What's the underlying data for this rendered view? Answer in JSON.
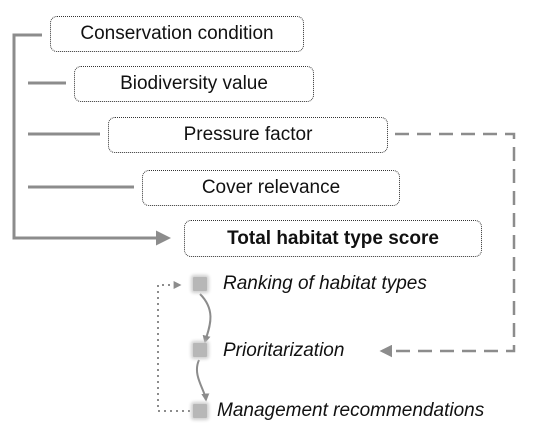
{
  "factors": [
    {
      "label": "Conservation condition"
    },
    {
      "label": "Biodiversity value"
    },
    {
      "label": "Pressure factor"
    },
    {
      "label": "Cover relevance"
    }
  ],
  "total": {
    "label": "Total habitat type score"
  },
  "steps": [
    {
      "label": "Ranking of habitat types"
    },
    {
      "label": "Prioritarization"
    },
    {
      "label": "Management recommendations"
    }
  ],
  "colors": {
    "line": "#8c8c8c",
    "box_border": "#333333",
    "marker": "#b7b7b7"
  }
}
